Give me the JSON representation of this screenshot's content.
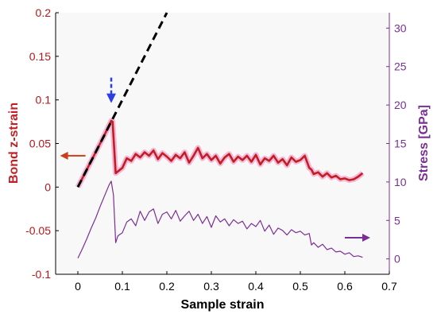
{
  "chart_data": {
    "type": "line",
    "xlabel": "Sample strain",
    "ylabel": "Bond z-strain",
    "y2label": "Stress [GPa]",
    "xlim": [
      -0.05,
      0.7
    ],
    "ylim": [
      -0.1,
      0.2
    ],
    "y2lim": [
      -2,
      32
    ],
    "xticks": [
      "0",
      "0.1",
      "0.2",
      "0.3",
      "0.4",
      "0.5",
      "0.6",
      "0.7"
    ],
    "yticks": [
      "-0.1",
      "-0.05",
      "0",
      "0.05",
      "0.1",
      "0.15",
      "0.2"
    ],
    "y2ticks": [
      "0",
      "5",
      "10",
      "15",
      "20",
      "25",
      "30"
    ],
    "grid": false,
    "legend": "none",
    "series": [
      {
        "axis": "left",
        "color": "#c21f24",
        "x": [
          0,
          0.02,
          0.04,
          0.06,
          0.075,
          0.078,
          0.085,
          0.1,
          0.11,
          0.12,
          0.13,
          0.14,
          0.15,
          0.16,
          0.17,
          0.18,
          0.19,
          0.2,
          0.21,
          0.22,
          0.23,
          0.24,
          0.25,
          0.26,
          0.27,
          0.28,
          0.29,
          0.3,
          0.31,
          0.32,
          0.33,
          0.34,
          0.35,
          0.36,
          0.37,
          0.38,
          0.39,
          0.4,
          0.41,
          0.42,
          0.43,
          0.44,
          0.45,
          0.46,
          0.47,
          0.48,
          0.49,
          0.5,
          0.51,
          0.52,
          0.525,
          0.53,
          0.54,
          0.55,
          0.56,
          0.57,
          0.58,
          0.59,
          0.6,
          0.61,
          0.62,
          0.63,
          0.64
        ],
        "y": [
          0,
          0.02,
          0.04,
          0.06,
          0.076,
          0.075,
          0.016,
          0.022,
          0.033,
          0.03,
          0.038,
          0.034,
          0.04,
          0.036,
          0.042,
          0.032,
          0.039,
          0.035,
          0.03,
          0.037,
          0.033,
          0.04,
          0.028,
          0.036,
          0.045,
          0.033,
          0.038,
          0.031,
          0.036,
          0.027,
          0.034,
          0.038,
          0.029,
          0.035,
          0.031,
          0.036,
          0.029,
          0.037,
          0.026,
          0.033,
          0.03,
          0.036,
          0.028,
          0.032,
          0.025,
          0.034,
          0.029,
          0.031,
          0.036,
          0.022,
          0.02,
          0.015,
          0.017,
          0.012,
          0.016,
          0.011,
          0.013,
          0.009,
          0.01,
          0.008,
          0.009,
          0.012,
          0.016
        ]
      },
      {
        "axis": "right",
        "color": "#7a2f95",
        "x": [
          0,
          0.01,
          0.02,
          0.03,
          0.04,
          0.05,
          0.06,
          0.07,
          0.075,
          0.08,
          0.085,
          0.09,
          0.1,
          0.11,
          0.12,
          0.13,
          0.14,
          0.15,
          0.16,
          0.17,
          0.18,
          0.19,
          0.2,
          0.21,
          0.22,
          0.23,
          0.24,
          0.25,
          0.26,
          0.27,
          0.28,
          0.29,
          0.3,
          0.31,
          0.32,
          0.33,
          0.34,
          0.35,
          0.36,
          0.37,
          0.38,
          0.39,
          0.4,
          0.41,
          0.42,
          0.43,
          0.44,
          0.45,
          0.46,
          0.47,
          0.48,
          0.49,
          0.5,
          0.51,
          0.52,
          0.525,
          0.53,
          0.54,
          0.55,
          0.56,
          0.57,
          0.58,
          0.59,
          0.6,
          0.61,
          0.62,
          0.63,
          0.64
        ],
        "y": [
          0.1,
          1.3,
          2.6,
          4,
          5.3,
          6.8,
          8.2,
          9.6,
          10.1,
          8.3,
          2.1,
          3,
          3.4,
          4.8,
          5.2,
          4.3,
          6.2,
          5,
          6.1,
          6.5,
          4.6,
          5.8,
          6.1,
          5.2,
          6.3,
          4.9,
          5.6,
          6.2,
          5,
          5.8,
          4.6,
          5.5,
          4.1,
          5.6,
          4.8,
          5.2,
          4.3,
          5.1,
          4.6,
          4.9,
          3.9,
          4.6,
          4.2,
          5,
          3.6,
          4.4,
          3.2,
          4,
          3.7,
          3.1,
          3.8,
          3.4,
          3.6,
          3.1,
          3.3,
          1.8,
          2.1,
          1.5,
          1.9,
          1.2,
          1.4,
          0.9,
          1,
          0.6,
          0.8,
          0.3,
          0.4,
          0.2
        ]
      },
      {
        "axis": "left",
        "style": "dashed",
        "color": "#000000",
        "x": [
          0,
          0.2
        ],
        "y": [
          0,
          0.2
        ]
      }
    ],
    "annotations": [
      {
        "type": "arrow",
        "direction": "down",
        "style": "dashed",
        "color": "#2b3fe6",
        "x": 0.075,
        "y": 0.1
      },
      {
        "type": "arrow",
        "direction": "left",
        "color": "#c8401a",
        "x": -0.04,
        "y": 0.036
      },
      {
        "type": "arrow",
        "direction": "right",
        "color": "#7a2f95",
        "x": 0.6,
        "y": -0.058
      }
    ]
  }
}
